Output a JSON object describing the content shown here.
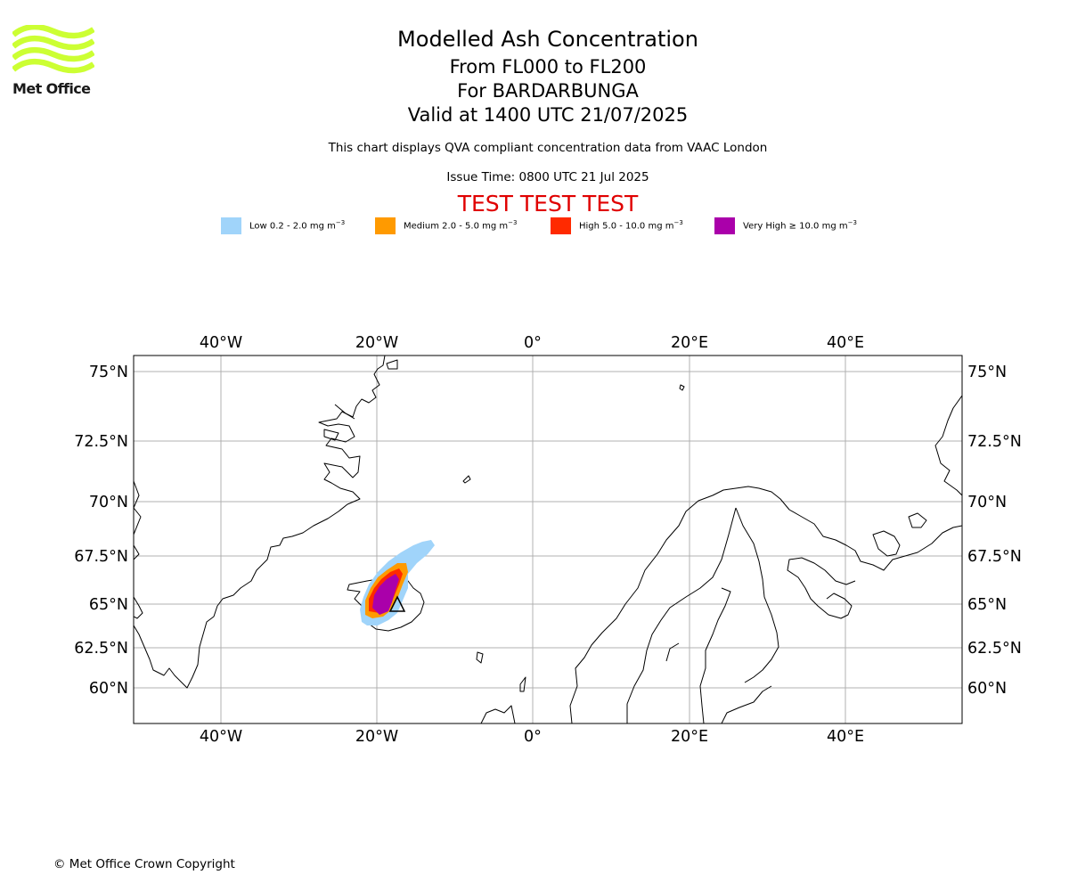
{
  "logo": {
    "text": "Met Office",
    "color": "#ccff33",
    "icon": "met-office-wave-logo"
  },
  "header": {
    "title": "Modelled Ash Concentration",
    "level_range": "From FL000 to FL200",
    "volcano": "For BARDARBUNGA",
    "valid_time": "Valid at 1400 UTC 21/07/2025",
    "subtitle": "This chart displays QVA compliant concentration data from VAAC London",
    "issue_time": "Issue Time: 0800 UTC 21 Jul 2025",
    "test_banner": "TEST TEST TEST"
  },
  "legend": [
    {
      "label_text": "Low 0.2 - 2.0 mg m",
      "unit_exp": "−3",
      "color": "#a0d4fa"
    },
    {
      "label_text": "Medium 2.0 - 5.0 mg m",
      "unit_exp": "−3",
      "color": "#ff9a00"
    },
    {
      "label_text": "High 5.0 - 10.0 mg m",
      "unit_exp": "−3",
      "color": "#ff2a00"
    },
    {
      "label_text": "Very High ≥ 10.0 mg m",
      "unit_exp": "−3",
      "color": "#aa00aa"
    }
  ],
  "map": {
    "lon_labels": [
      "40°W",
      "20°W",
      "0°",
      "20°E",
      "40°E"
    ],
    "lat_labels": [
      "75°N",
      "72.5°N",
      "70°N",
      "67.5°N",
      "65°N",
      "62.5°N",
      "60°N"
    ],
    "grid": true,
    "volcano_marker": "volcano-triangle-icon"
  },
  "footer": {
    "copyright": "© Met Office Crown Copyright"
  }
}
